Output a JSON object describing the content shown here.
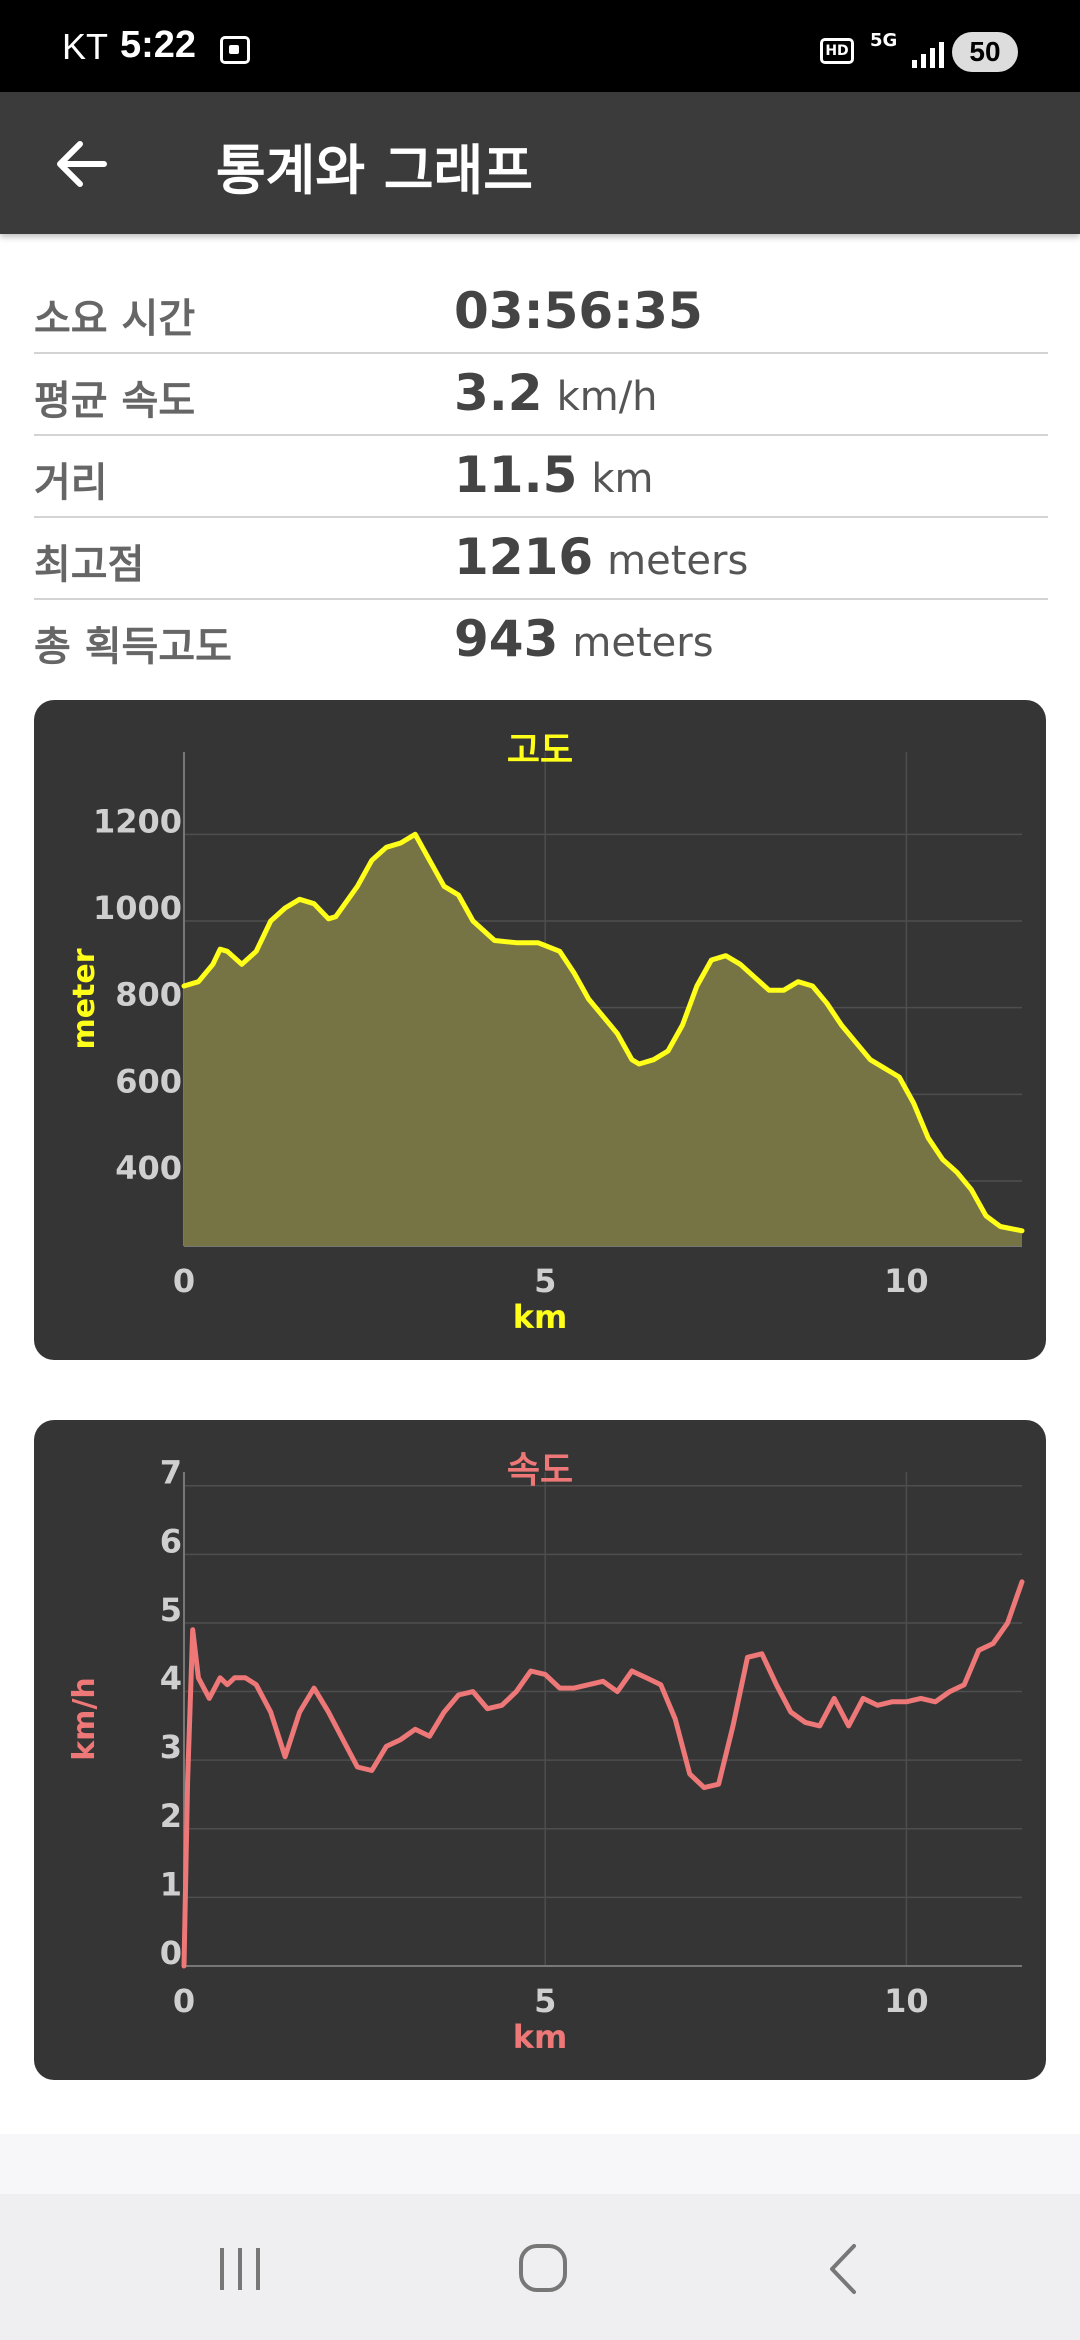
{
  "status_bar": {
    "carrier": "KT",
    "time": "5:22",
    "hd": "HD",
    "network": "5G",
    "battery": "50"
  },
  "app_bar": {
    "title": "통계와 그래프",
    "back_icon": "arrow-left-icon"
  },
  "stats": [
    {
      "label": "소요 시간",
      "value": "03:56:35",
      "unit": ""
    },
    {
      "label": "평균 속도",
      "value": "3.2",
      "unit": "km/h"
    },
    {
      "label": "거리",
      "value": "11.5",
      "unit": "km"
    },
    {
      "label": "최고점",
      "value": "1216",
      "unit": "meters"
    },
    {
      "label": "총 획득고도",
      "value": "943",
      "unit": "meters"
    }
  ],
  "chart_data": [
    {
      "type": "area",
      "title": "고도",
      "xlabel": "km",
      "ylabel": "meter",
      "xlim": [
        0,
        11.6
      ],
      "ylim": [
        250,
        1390
      ],
      "xticks": [
        0,
        5,
        10
      ],
      "yticks": [
        400,
        600,
        800,
        1000,
        1200
      ],
      "grid": true,
      "color": "#ffff1a",
      "fill": "#767444",
      "x": [
        0,
        0.2,
        0.4,
        0.5,
        0.6,
        0.8,
        1.0,
        1.2,
        1.4,
        1.6,
        1.8,
        2.0,
        2.1,
        2.4,
        2.6,
        2.8,
        3.0,
        3.2,
        3.4,
        3.6,
        3.8,
        4.0,
        4.3,
        4.6,
        4.9,
        5.2,
        5.4,
        5.6,
        5.8,
        6.0,
        6.2,
        6.3,
        6.5,
        6.7,
        6.9,
        7.1,
        7.3,
        7.5,
        7.7,
        7.9,
        8.1,
        8.3,
        8.5,
        8.7,
        8.9,
        9.1,
        9.3,
        9.5,
        9.7,
        9.9,
        10.1,
        10.3,
        10.5,
        10.7,
        10.9,
        11.1,
        11.3,
        11.6
      ],
      "y": [
        850,
        860,
        900,
        935,
        930,
        900,
        930,
        1000,
        1030,
        1050,
        1040,
        1005,
        1010,
        1080,
        1140,
        1170,
        1180,
        1200,
        1140,
        1080,
        1060,
        1000,
        955,
        950,
        950,
        930,
        880,
        820,
        780,
        740,
        680,
        670,
        680,
        700,
        760,
        850,
        910,
        920,
        900,
        870,
        840,
        840,
        860,
        850,
        810,
        760,
        720,
        680,
        660,
        640,
        580,
        500,
        450,
        420,
        380,
        320,
        295,
        285
      ]
    },
    {
      "type": "line",
      "title": "속도",
      "xlabel": "km",
      "ylabel": "km/h",
      "xlim": [
        0,
        11.6
      ],
      "ylim": [
        0,
        7.2
      ],
      "xticks": [
        0,
        5,
        10
      ],
      "yticks": [
        0,
        1,
        2,
        3,
        4,
        5,
        6,
        7
      ],
      "grid": true,
      "color": "#ee7777",
      "x": [
        0,
        0.05,
        0.12,
        0.2,
        0.35,
        0.5,
        0.6,
        0.7,
        0.85,
        1.0,
        1.2,
        1.4,
        1.6,
        1.8,
        2.0,
        2.2,
        2.4,
        2.6,
        2.8,
        3.0,
        3.2,
        3.4,
        3.6,
        3.8,
        4.0,
        4.2,
        4.4,
        4.6,
        4.8,
        5.0,
        5.2,
        5.4,
        5.6,
        5.8,
        6.0,
        6.2,
        6.4,
        6.6,
        6.8,
        7.0,
        7.2,
        7.4,
        7.6,
        7.8,
        8.0,
        8.2,
        8.4,
        8.6,
        8.8,
        9.0,
        9.2,
        9.4,
        9.6,
        9.8,
        10.0,
        10.2,
        10.4,
        10.6,
        10.8,
        11.0,
        11.2,
        11.4,
        11.6
      ],
      "y": [
        0,
        2.7,
        4.9,
        4.2,
        3.9,
        4.2,
        4.1,
        4.2,
        4.2,
        4.1,
        3.7,
        3.05,
        3.7,
        4.05,
        3.7,
        3.3,
        2.9,
        2.85,
        3.2,
        3.3,
        3.45,
        3.35,
        3.7,
        3.95,
        4.0,
        3.75,
        3.8,
        4.0,
        4.3,
        4.25,
        4.05,
        4.05,
        4.1,
        4.15,
        4.0,
        4.3,
        4.2,
        4.1,
        3.6,
        2.8,
        2.6,
        2.65,
        3.5,
        4.5,
        4.55,
        4.1,
        3.7,
        3.55,
        3.5,
        3.9,
        3.5,
        3.9,
        3.8,
        3.85,
        3.85,
        3.9,
        3.85,
        4.0,
        4.1,
        4.6,
        4.7,
        5.0,
        5.6
      ]
    }
  ]
}
